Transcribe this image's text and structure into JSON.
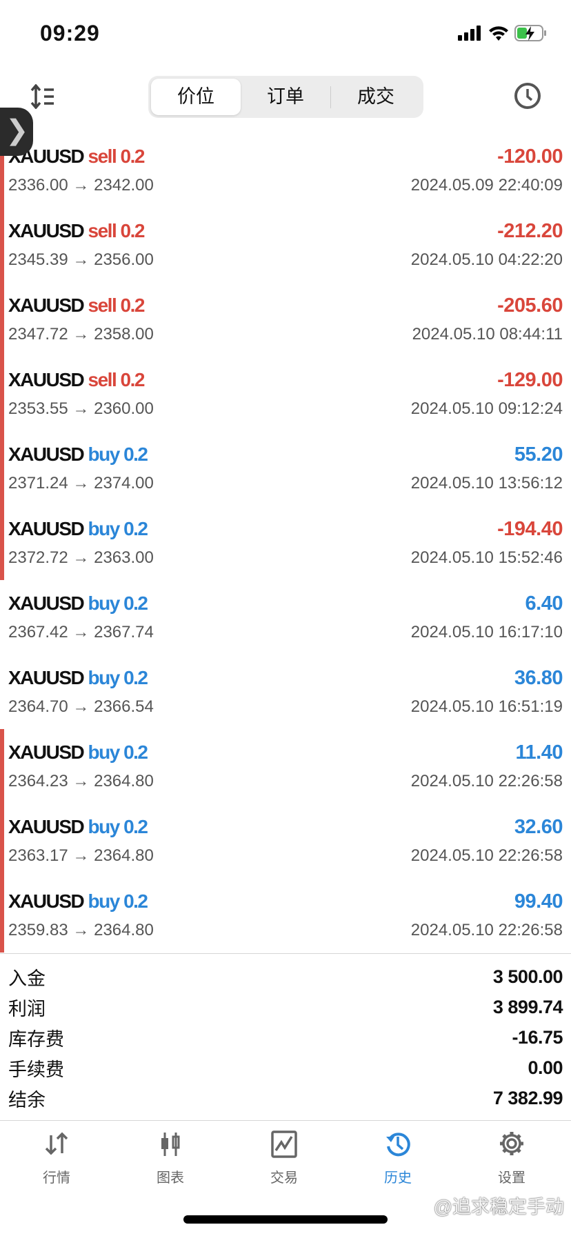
{
  "status": {
    "time": "09:29"
  },
  "header": {
    "tabs": [
      "价位",
      "订单",
      "成交"
    ],
    "active_tab": 0
  },
  "deals": [
    {
      "symbol": "XAUUSD",
      "side": "sell",
      "volume": "0.2",
      "prices": "2336.00 → 2342.00",
      "profit": "-120.00",
      "time": "2024.05.09 22:40:09",
      "marked": true
    },
    {
      "symbol": "XAUUSD",
      "side": "sell",
      "volume": "0.2",
      "prices": "2345.39 → 2356.00",
      "profit": "-212.20",
      "time": "2024.05.10 04:22:20",
      "marked": true
    },
    {
      "symbol": "XAUUSD",
      "side": "sell",
      "volume": "0.2",
      "prices": "2347.72 → 2358.00",
      "profit": "-205.60",
      "time": "2024.05.10 08:44:11",
      "marked": true
    },
    {
      "symbol": "XAUUSD",
      "side": "sell",
      "volume": "0.2",
      "prices": "2353.55 → 2360.00",
      "profit": "-129.00",
      "time": "2024.05.10 09:12:24",
      "marked": true
    },
    {
      "symbol": "XAUUSD",
      "side": "buy",
      "volume": "0.2",
      "prices": "2371.24 → 2374.00",
      "profit": "55.20",
      "time": "2024.05.10 13:56:12",
      "marked": true
    },
    {
      "symbol": "XAUUSD",
      "side": "buy",
      "volume": "0.2",
      "prices": "2372.72 → 2363.00",
      "profit": "-194.40",
      "time": "2024.05.10 15:52:46",
      "marked": true
    },
    {
      "symbol": "XAUUSD",
      "side": "buy",
      "volume": "0.2",
      "prices": "2367.42 → 2367.74",
      "profit": "6.40",
      "time": "2024.05.10 16:17:10",
      "marked": false
    },
    {
      "symbol": "XAUUSD",
      "side": "buy",
      "volume": "0.2",
      "prices": "2364.70 → 2366.54",
      "profit": "36.80",
      "time": "2024.05.10 16:51:19",
      "marked": false
    },
    {
      "symbol": "XAUUSD",
      "side": "buy",
      "volume": "0.2",
      "prices": "2364.23 → 2364.80",
      "profit": "11.40",
      "time": "2024.05.10 22:26:58",
      "marked": true
    },
    {
      "symbol": "XAUUSD",
      "side": "buy",
      "volume": "0.2",
      "prices": "2363.17 → 2364.80",
      "profit": "32.60",
      "time": "2024.05.10 22:26:58",
      "marked": true
    },
    {
      "symbol": "XAUUSD",
      "side": "buy",
      "volume": "0.2",
      "prices": "2359.83 → 2364.80",
      "profit": "99.40",
      "time": "2024.05.10 22:26:58",
      "marked": true
    }
  ],
  "summary": [
    {
      "label": "入金",
      "value": "3 500.00"
    },
    {
      "label": "利润",
      "value": "3 899.74"
    },
    {
      "label": "库存费",
      "value": "-16.75"
    },
    {
      "label": "手续费",
      "value": "0.00"
    },
    {
      "label": "结余",
      "value": "7 382.99"
    }
  ],
  "nav": [
    {
      "label": "行情",
      "icon": "quotes-arrows-icon"
    },
    {
      "label": "图表",
      "icon": "candlestick-chart-icon"
    },
    {
      "label": "交易",
      "icon": "trade-chart-icon"
    },
    {
      "label": "历史",
      "icon": "history-icon",
      "active": true
    },
    {
      "label": "设置",
      "icon": "settings-gear-icon"
    }
  ],
  "watermark": "@追求稳定手动",
  "colors": {
    "loss": "#d9463b",
    "profit": "#2b86d8",
    "active": "#2b86d8"
  }
}
